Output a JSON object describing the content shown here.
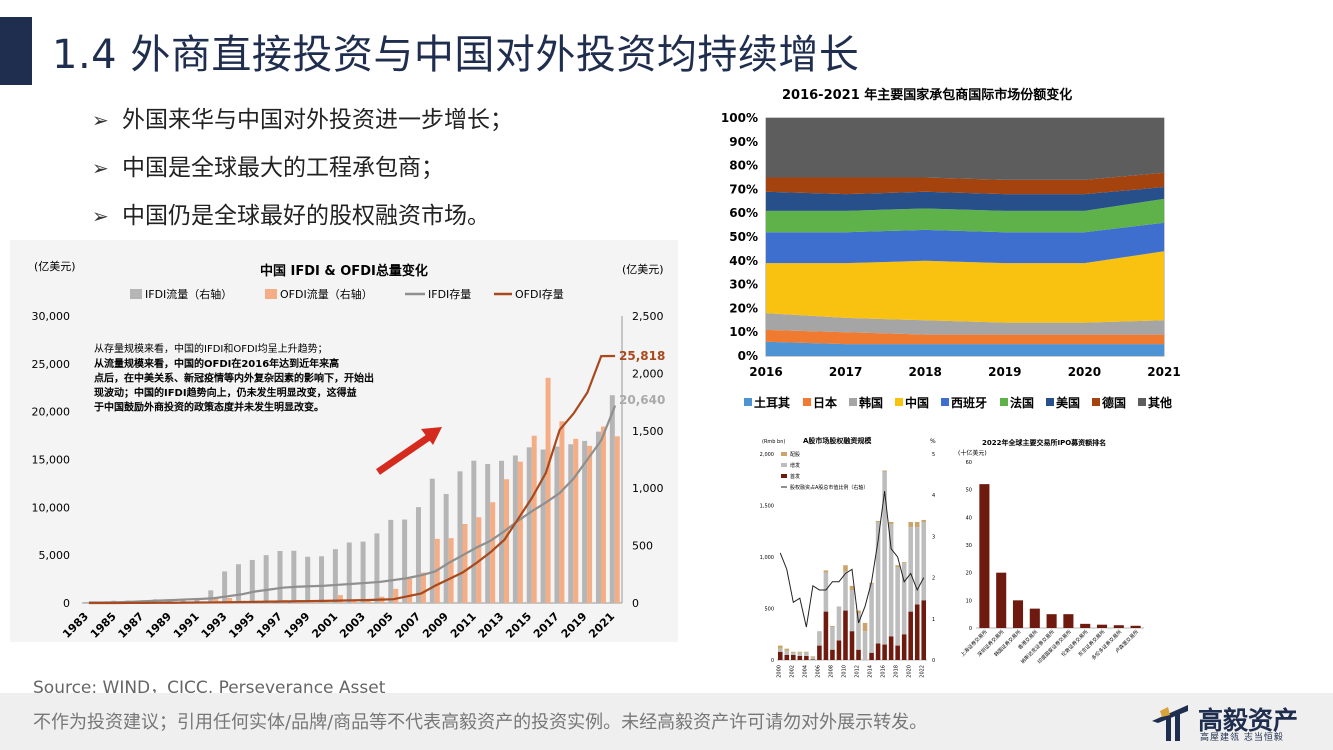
{
  "slide": {
    "title": "1.4 外商直接投资与中国对外投资均持续增长",
    "bullets": [
      "外国来华与中国对外投资进一步增长；",
      "中国是全球最大的工程承包商；",
      "中国仍是全球最好的股权融资市场。"
    ],
    "bullet_marker": "➢",
    "source": "Source: WIND，CICC, Perseverance Asset",
    "disclaimer": "不作为投资建议；引用任何实体/品牌/商品等不代表高毅资产的投资实例。未经高毅资产许可请勿对外展示转发。",
    "brand": "高毅资产",
    "slogan": "高屋建瓴 志当恒毅",
    "brand_color": "#1f2d4e"
  },
  "chart_data": [
    {
      "type": "bar",
      "title": "中国 IFDI & OFDI总量变化",
      "ylabel": "(亿美元)",
      "y2label": "(亿美元)",
      "ylim": [
        0,
        30000
      ],
      "y2lim": [
        0,
        2500
      ],
      "yticks": [
        "0",
        "5,000",
        "10,000",
        "15,000",
        "20,000",
        "25,000",
        "30,000"
      ],
      "y2ticks": [
        "0",
        "500",
        "1,000",
        "1,500",
        "2,000",
        "2,500"
      ],
      "categories": [
        "1983",
        "1984",
        "1985",
        "1986",
        "1987",
        "1988",
        "1989",
        "1990",
        "1991",
        "1992",
        "1993",
        "1994",
        "1995",
        "1996",
        "1997",
        "1998",
        "1999",
        "2000",
        "2001",
        "2002",
        "2003",
        "2004",
        "2005",
        "2006",
        "2007",
        "2008",
        "2009",
        "2010",
        "2011",
        "2012",
        "2013",
        "2014",
        "2015",
        "2016",
        "2017",
        "2018",
        "2019",
        "2020",
        "2021"
      ],
      "xtick_labels": [
        "1983",
        "1985",
        "1987",
        "1989",
        "1991",
        "1993",
        "1995",
        "1997",
        "1999",
        "2001",
        "2003",
        "2005",
        "2007",
        "2009",
        "2011",
        "2013",
        "2015",
        "2017",
        "2019",
        "2021"
      ],
      "series": [
        {
          "name": "IFDI流量（右轴）",
          "axis": "right",
          "kind": "bar",
          "color": "#b5b5b5",
          "values": [
            9,
            13,
            20,
            22,
            23,
            32,
            34,
            35,
            44,
            110,
            275,
            338,
            375,
            417,
            453,
            455,
            403,
            407,
            469,
            527,
            535,
            606,
            724,
            727,
            835,
            1083,
            950,
            1147,
            1240,
            1211,
            1239,
            1285,
            1356,
            1337,
            1363,
            1383,
            1412,
            1493,
            1810
          ]
        },
        {
          "name": "OFDI流量（右轴）",
          "axis": "right",
          "kind": "bar",
          "color": "#f4ad84",
          "values": [
            1,
            1,
            6,
            5,
            6,
            4,
            8,
            8,
            9,
            40,
            44,
            20,
            20,
            21,
            26,
            26,
            19,
            9,
            69,
            27,
            29,
            55,
            123,
            212,
            265,
            559,
            565,
            688,
            747,
            878,
            1078,
            1231,
            1457,
            1962,
            1583,
            1430,
            1369,
            1537,
            1452
          ]
        },
        {
          "name": "IFDI存量",
          "axis": "left",
          "kind": "line",
          "color": "#8f8f8f",
          "values": [
            50,
            60,
            80,
            120,
            180,
            250,
            300,
            370,
            420,
            500,
            700,
            900,
            1200,
            1400,
            1600,
            1700,
            1750,
            1800,
            1900,
            2000,
            2100,
            2200,
            2400,
            2600,
            2900,
            3300,
            4200,
            5000,
            5800,
            6500,
            7500,
            8600,
            9600,
            10500,
            11500,
            13000,
            15000,
            17000,
            20640
          ]
        },
        {
          "name": "OFDI存量",
          "axis": "left",
          "kind": "line",
          "color": "#a8491e",
          "values": [
            0,
            0,
            0,
            10,
            10,
            20,
            30,
            40,
            50,
            60,
            80,
            100,
            120,
            140,
            160,
            180,
            200,
            220,
            250,
            280,
            300,
            350,
            400,
            700,
            1000,
            1800,
            2500,
            3200,
            4200,
            5300,
            6600,
            8800,
            11000,
            13600,
            18100,
            19800,
            22000,
            25806,
            25818
          ]
        }
      ],
      "data_labels": {
        "ifdi_stock_end": "20,640",
        "ofdi_stock_end": "25,818"
      },
      "annotation": "从存量规模来看，中国的IFDI和OFDI均呈上升趋势；\n从流量规模来看，中国的OFDI在2016年达到近年来高点后，在中美关系、新冠疫情等内外复杂因素的影响下，开始出现波动；中国的IFDI趋势向上，仍未发生明显改变，这得益于中国鼓励外商投资的政策态度并未发生明显改变。",
      "legend": "top"
    },
    {
      "type": "area",
      "title": "2016-2021 年主要国家承包商国际市场份额变化",
      "categories": [
        "2016",
        "2017",
        "2018",
        "2019",
        "2020",
        "2021"
      ],
      "yticks": [
        "0%",
        "10%",
        "20%",
        "30%",
        "40%",
        "50%",
        "60%",
        "70%",
        "80%",
        "90%",
        "100%"
      ],
      "ylim": [
        0,
        100
      ],
      "series": [
        {
          "name": "土耳其",
          "color": "#4e93d3",
          "values": [
            6,
            5,
            5,
            5,
            5,
            5
          ]
        },
        {
          "name": "日本",
          "color": "#f07a2f",
          "values": [
            5,
            5,
            4,
            4,
            4,
            4
          ]
        },
        {
          "name": "韩国",
          "color": "#a5a5a5",
          "values": [
            7,
            6,
            6,
            5,
            5,
            6
          ]
        },
        {
          "name": "中国",
          "color": "#f9c211",
          "values": [
            21,
            23,
            25,
            25,
            25,
            29
          ]
        },
        {
          "name": "西班牙",
          "color": "#3f6fce",
          "values": [
            13,
            13,
            13,
            13,
            13,
            12
          ]
        },
        {
          "name": "法国",
          "color": "#5fb14a",
          "values": [
            9,
            9,
            9,
            9,
            9,
            10
          ]
        },
        {
          "name": "美国",
          "color": "#27508a",
          "values": [
            8,
            7,
            7,
            7,
            7,
            5
          ]
        },
        {
          "name": "德国",
          "color": "#a5430f",
          "values": [
            6,
            7,
            6,
            6,
            6,
            6
          ]
        },
        {
          "name": "其他",
          "color": "#5d5d5d",
          "values": [
            25,
            25,
            25,
            26,
            26,
            23
          ]
        }
      ],
      "legend": "bottom"
    },
    {
      "type": "bar",
      "title": "A股市场股权融资规模",
      "ylabel": "(Rmb bn)",
      "y2label": "%",
      "ylim": [
        0,
        2000
      ],
      "y2lim": [
        0,
        5
      ],
      "yticks": [
        "0",
        "500",
        "1,000",
        "1,500",
        "2,000"
      ],
      "y2ticks": [
        "0",
        "1",
        "2",
        "3",
        "4",
        "5"
      ],
      "categories": [
        "2000",
        "2001",
        "2002",
        "2003",
        "2004",
        "2005",
        "2006",
        "2007",
        "2008",
        "2009",
        "2010",
        "2011",
        "2012",
        "2013",
        "2014",
        "2015",
        "2016",
        "2017",
        "2018",
        "2019",
        "2020",
        "2021",
        "2022"
      ],
      "xtick_labels": [
        "2000",
        "2002",
        "2004",
        "2006",
        "2008",
        "2010",
        "2012",
        "2014",
        "2016",
        "2018",
        "2020",
        "2022"
      ],
      "series": [
        {
          "name": "首发",
          "kind": "bar",
          "color": "#6e1a0e",
          "values": [
            80,
            50,
            50,
            40,
            40,
            5,
            140,
            470,
            100,
            190,
            480,
            280,
            100,
            0,
            70,
            160,
            150,
            230,
            140,
            250,
            470,
            540,
            580
          ]
        },
        {
          "name": "增发",
          "kind": "bar",
          "color": "#bdbdbd",
          "values": [
            30,
            40,
            20,
            30,
            30,
            20,
            140,
            380,
            220,
            330,
            380,
            400,
            350,
            280,
            670,
            1180,
            1680,
            1090,
            760,
            690,
            820,
            750,
            760
          ]
        },
        {
          "name": "配股",
          "kind": "bar",
          "color": "#c9a46b",
          "values": [
            30,
            20,
            10,
            10,
            10,
            10,
            0,
            20,
            10,
            0,
            60,
            40,
            30,
            80,
            10,
            10,
            10,
            20,
            20,
            10,
            50,
            50,
            20
          ]
        },
        {
          "name": "股权融资占A股总市值比例（右轴）",
          "kind": "line",
          "axis": "right",
          "color": "#222222",
          "values": [
            2.6,
            2.2,
            1.4,
            1.5,
            0.8,
            1.8,
            1.7,
            1.7,
            1.9,
            1.9,
            2.1,
            2.2,
            0.9,
            1.3,
            1.9,
            2.9,
            4.1,
            2.7,
            2.5,
            1.9,
            2.1,
            1.7,
            2.0
          ]
        }
      ],
      "legend": "top-left"
    },
    {
      "type": "bar",
      "title": "2022年全球主要交易所IPO募资额排名",
      "ylabel": "(十亿美元)",
      "ylim": [
        0,
        60
      ],
      "yticks": [
        "0",
        "10",
        "20",
        "30",
        "40",
        "50",
        "60"
      ],
      "categories": [
        "上海证券交易所",
        "深圳证券交易所",
        "韩国证券交易所",
        "香港交易所",
        "纳斯达克证券交易所",
        "印度国家证券交易所",
        "伦敦证券交易所",
        "东京证券交易所",
        "多伦多证券交易所",
        "卢森堡交易所"
      ],
      "values": [
        52,
        20,
        10,
        7,
        5,
        5,
        1.5,
        1.2,
        1,
        0.8
      ],
      "color": "#6e1a0e"
    }
  ]
}
